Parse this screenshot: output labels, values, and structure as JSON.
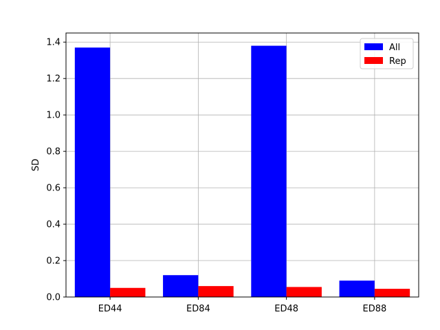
{
  "chart_data": {
    "type": "bar",
    "categories": [
      "ED44",
      "ED84",
      "ED48",
      "ED88"
    ],
    "series": [
      {
        "name": "All",
        "values": [
          1.37,
          0.12,
          1.38,
          0.09
        ],
        "color": "#0000ff"
      },
      {
        "name": "Rep",
        "values": [
          0.05,
          0.06,
          0.055,
          0.045
        ],
        "color": "#ff0000"
      }
    ],
    "xlabel": "",
    "ylabel": "SD",
    "ylim": [
      0,
      1.45
    ],
    "yticks": [
      {
        "value": 0.0,
        "label": "0.0"
      },
      {
        "value": 0.2,
        "label": "0.2"
      },
      {
        "value": 0.4,
        "label": "0.4"
      },
      {
        "value": 0.6,
        "label": "0.6"
      },
      {
        "value": 0.8,
        "label": "0.8"
      },
      {
        "value": 1.0,
        "label": "1.0"
      },
      {
        "value": 1.2,
        "label": "1.2"
      },
      {
        "value": 1.4,
        "label": "1.4"
      }
    ],
    "grid": true,
    "legend_position": "top-right"
  }
}
